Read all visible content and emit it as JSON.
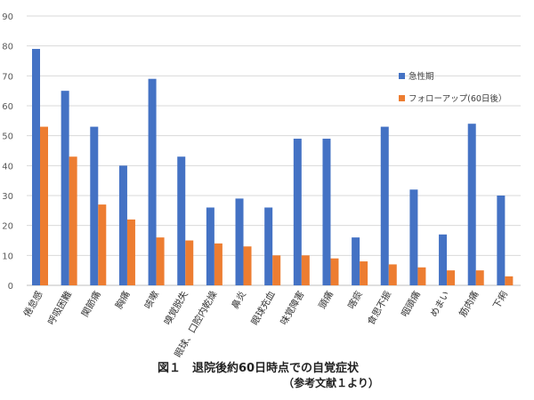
{
  "caption": {
    "title": "図１　退院後約60日時点での自覚症状",
    "reference": "（参考文献１より）"
  },
  "chart_data": {
    "type": "bar",
    "categories": [
      "倦怠感",
      "呼吸困難",
      "関節痛",
      "胸痛",
      "咳嗽",
      "嗅覚脱失",
      "眼球、口腔内乾燥",
      "鼻炎",
      "眼球充血",
      "味覚障害",
      "頭痛",
      "喀痰",
      "食思不振",
      "咽頭痛",
      "めまい",
      "筋肉痛",
      "下痢"
    ],
    "series": [
      {
        "name": "急性期",
        "color": "#4472C4",
        "values": [
          79,
          65,
          53,
          40,
          69,
          43,
          26,
          29,
          26,
          49,
          49,
          16,
          53,
          32,
          17,
          54,
          30
        ]
      },
      {
        "name": "フォローアップ(60日後）",
        "color": "#ED7D31",
        "values": [
          53,
          43,
          27,
          22,
          16,
          15,
          14,
          13,
          10,
          10,
          9,
          8,
          7,
          6,
          5,
          5,
          3
        ]
      }
    ],
    "y_ticks": [
      0,
      10,
      20,
      30,
      40,
      50,
      60,
      70,
      80,
      90
    ],
    "ylim": [
      0,
      90
    ],
    "grid": true,
    "legend_position": "right"
  }
}
